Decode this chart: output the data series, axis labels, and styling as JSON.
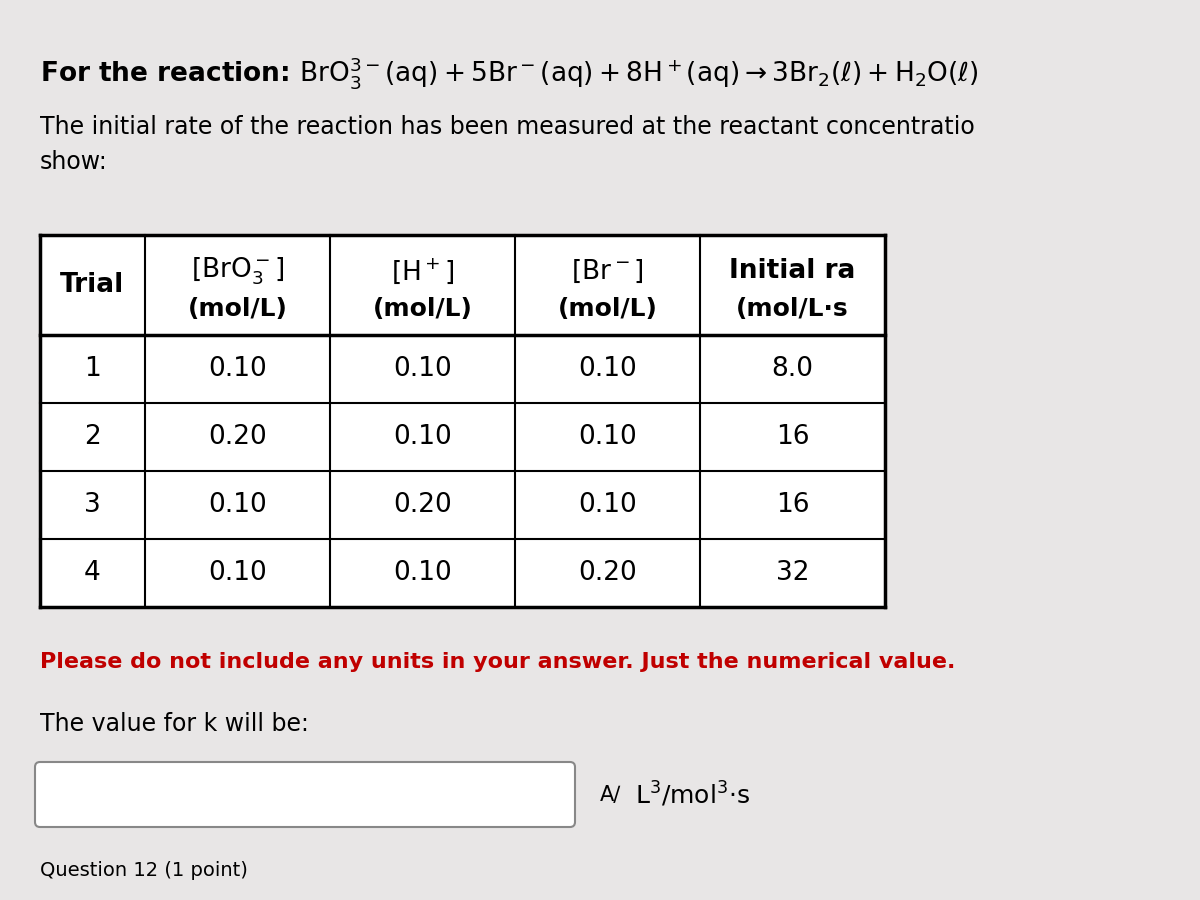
{
  "title_text": "For the reaction: $\\mathrm{BrO_3^{3-}(aq) + 5Br^-(aq) + 8H^+(aq) \\rightarrow 3Br_2(\\ell) + H_2O(\\ell)}$",
  "subtitle": "The initial rate of the reaction has been measured at the reactant concentratio\nshow:",
  "col_headers_line1": [
    "Trial",
    "[BrO₃⁻]",
    "[H⁺]",
    "[Br ⁻]",
    "Initial ra"
  ],
  "col_headers_line2": [
    "",
    "(mol/L)",
    "(mol/L)",
    "(mol/L)",
    "(mol/L·s"
  ],
  "table_data": [
    [
      "1",
      "0.10",
      "0.10",
      "0.10",
      "8.0"
    ],
    [
      "2",
      "0.20",
      "0.10",
      "0.10",
      "16"
    ],
    [
      "3",
      "0.10",
      "0.20",
      "0.10",
      "16"
    ],
    [
      "4",
      "0.10",
      "0.10",
      "0.20",
      "32"
    ]
  ],
  "note": "Please do not include any units in your answer. Just the numerical value.",
  "k_label": "The value for k will be:",
  "bottom_label": "Question 12 (1 point)",
  "bg_color": "#e8e6e6",
  "table_bg": "#ffffff",
  "note_color": "#c00000",
  "text_color": "#000000",
  "font_size_title": 19,
  "font_size_body": 17,
  "font_size_table_header": 19,
  "font_size_table_data": 19,
  "font_size_note": 16,
  "font_size_bottom": 14
}
